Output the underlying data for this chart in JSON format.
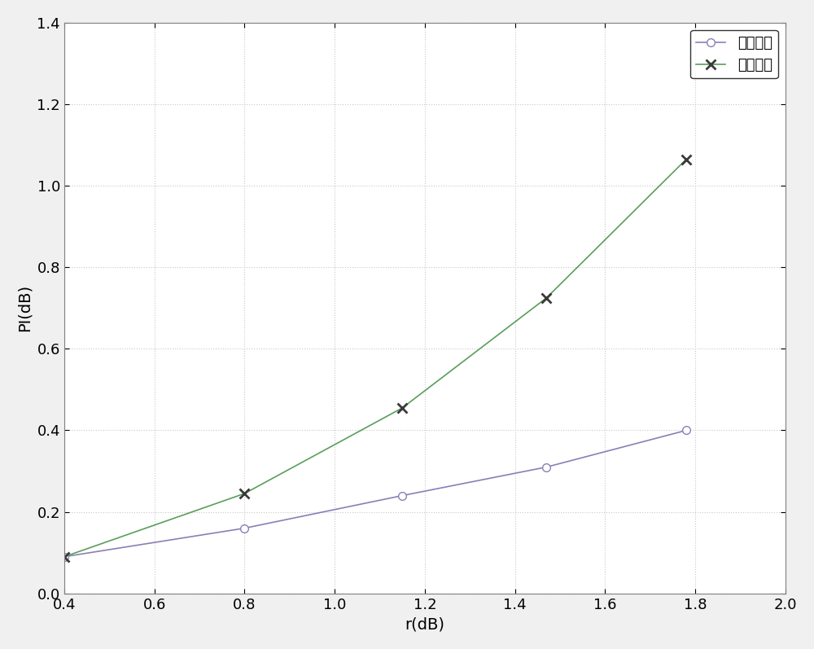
{
  "title": "",
  "xlabel": "r(dB)",
  "ylabel": "PI(dB)",
  "xlim": [
    0.4,
    2.0
  ],
  "ylim": [
    0.0,
    1.4
  ],
  "xticks": [
    0.4,
    0.6,
    0.8,
    1.0,
    1.2,
    1.4,
    1.6,
    1.8,
    2.0
  ],
  "yticks": [
    0.0,
    0.2,
    0.4,
    0.6,
    0.8,
    1.0,
    1.2,
    1.4
  ],
  "series": [
    {
      "label": "混合模式",
      "x": [
        0.4,
        0.8,
        1.15,
        1.47,
        1.78
      ],
      "y": [
        0.09,
        0.16,
        0.24,
        0.31,
        0.4
      ],
      "color": "#8B7FB8",
      "marker": "o",
      "marker_size": 7,
      "marker_facecolor": "white",
      "marker_edgecolor": "#8B7FB8",
      "linewidth": 1.2,
      "linestyle": "-"
    },
    {
      "label": "放大模式",
      "x": [
        0.4,
        0.8,
        1.15,
        1.47,
        1.78
      ],
      "y": [
        0.09,
        0.245,
        0.455,
        0.725,
        1.065
      ],
      "color": "#5a9e5a",
      "marker": "x",
      "marker_size": 8,
      "marker_facecolor": "#3a3a3a",
      "marker_edgecolor": "#3a3a3a",
      "linewidth": 1.2,
      "linestyle": "-"
    }
  ],
  "grid_color": "#c8c8c8",
  "grid_linestyle": ":",
  "background_color": "#ffffff",
  "legend_loc": "upper right",
  "legend_fontsize": 13,
  "axis_fontsize": 14,
  "tick_fontsize": 13,
  "figure_facecolor": "#f0f0f0"
}
